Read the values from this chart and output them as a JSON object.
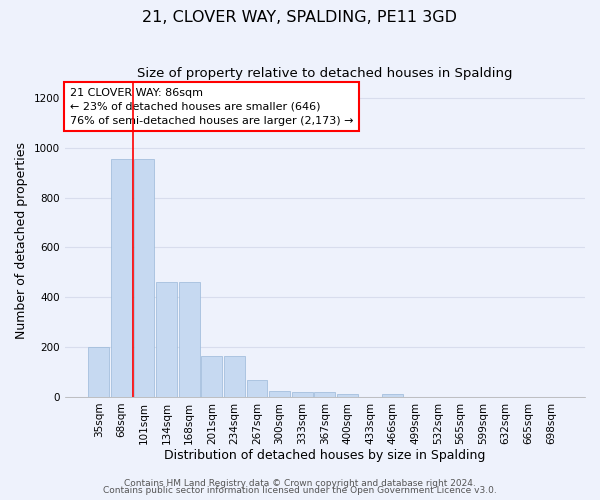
{
  "title": "21, CLOVER WAY, SPALDING, PE11 3GD",
  "subtitle": "Size of property relative to detached houses in Spalding",
  "xlabel": "Distribution of detached houses by size in Spalding",
  "ylabel": "Number of detached properties",
  "categories": [
    "35sqm",
    "68sqm",
    "101sqm",
    "134sqm",
    "168sqm",
    "201sqm",
    "234sqm",
    "267sqm",
    "300sqm",
    "333sqm",
    "367sqm",
    "400sqm",
    "433sqm",
    "466sqm",
    "499sqm",
    "532sqm",
    "565sqm",
    "599sqm",
    "632sqm",
    "665sqm",
    "698sqm"
  ],
  "values": [
    200,
    955,
    955,
    460,
    460,
    163,
    163,
    70,
    25,
    20,
    18,
    12,
    0,
    12,
    0,
    0,
    0,
    0,
    0,
    0,
    0
  ],
  "bar_color": "#c6d9f1",
  "bar_edge_color": "#9ab8d8",
  "red_line_x": 1.5,
  "annotation_text": "21 CLOVER WAY: 86sqm\n← 23% of detached houses are smaller (646)\n76% of semi-detached houses are larger (2,173) →",
  "annotation_box_color": "white",
  "annotation_box_edge_color": "red",
  "ylim": [
    0,
    1260
  ],
  "yticks": [
    0,
    200,
    400,
    600,
    800,
    1000,
    1200
  ],
  "grid_color": "#d8dded",
  "footer_line1": "Contains HM Land Registry data © Crown copyright and database right 2024.",
  "footer_line2": "Contains public sector information licensed under the Open Government Licence v3.0.",
  "title_fontsize": 11.5,
  "subtitle_fontsize": 9.5,
  "axis_label_fontsize": 9,
  "tick_fontsize": 7.5,
  "annotation_fontsize": 8,
  "footer_fontsize": 6.5,
  "background_color": "#eef2fc"
}
